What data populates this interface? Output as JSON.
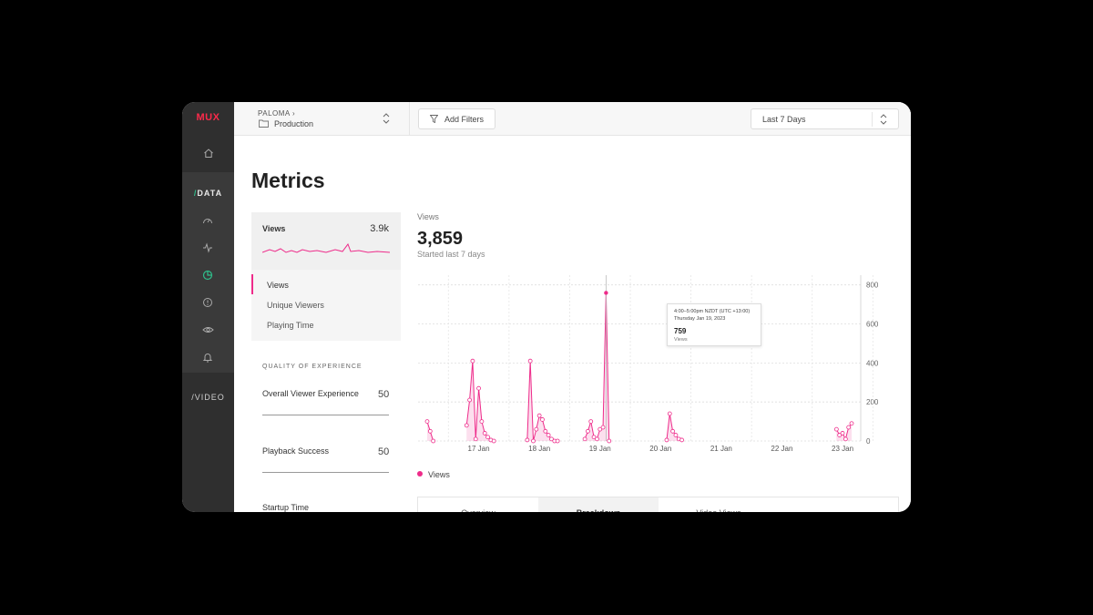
{
  "app": {
    "logo": "MUX"
  },
  "sidebar": {
    "data_slash": "/",
    "data_label": "DATA",
    "video_slash": "/",
    "video_label": "VIDEO"
  },
  "topbar": {
    "org": "PALOMA ›",
    "environment": "Production",
    "filters_label": "Add Filters",
    "range_label": "Last 7 Days"
  },
  "page": {
    "title": "Metrics"
  },
  "metric_card": {
    "label": "Views",
    "value": "3.9k"
  },
  "metric_list": [
    {
      "label": "Views",
      "active": true
    },
    {
      "label": "Unique Viewers",
      "active": false
    },
    {
      "label": "Playing Time",
      "active": false
    }
  ],
  "qoe": {
    "heading": "QUALITY OF EXPERIENCE",
    "scores": [
      {
        "label": "Overall Viewer Experience",
        "value": "50"
      },
      {
        "label": "Playback Success",
        "value": "50"
      },
      {
        "label": "Startup Time",
        "value": ""
      }
    ]
  },
  "summary": {
    "kicker": "Views",
    "value": "3,859",
    "subtitle": "Started last 7 days"
  },
  "tooltip": {
    "time": "4:00–5:00pm NZDT (UTC +13:00)",
    "date": "Thursday Jan 19, 2023",
    "value": "759",
    "unit": "Views"
  },
  "legend": {
    "label": "Views"
  },
  "tabs": [
    {
      "label": "Overview",
      "active": false
    },
    {
      "label": "Breakdown",
      "active": true
    },
    {
      "label": "Video Views",
      "active": false
    }
  ],
  "colors": {
    "accent": "#ee2b8a",
    "brand": "#fb2a4a",
    "data_green": "#2fbd8a"
  },
  "chart_data": {
    "type": "area",
    "ylim": [
      0,
      850
    ],
    "yticks": [
      0,
      200,
      400,
      600,
      800
    ],
    "xticks": [
      "17 Jan",
      "18 Jan",
      "19 Jan",
      "20 Jan",
      "21 Jan",
      "22 Jan",
      "23 Jan"
    ],
    "grid": true,
    "legend": "bottom-left",
    "series": [
      {
        "name": "Views",
        "x": [
          16.15,
          16.2,
          16.25,
          16.8,
          16.85,
          16.9,
          16.95,
          17.0,
          17.05,
          17.1,
          17.15,
          17.2,
          17.25,
          17.8,
          17.85,
          17.9,
          17.95,
          18.0,
          18.05,
          18.1,
          18.15,
          18.2,
          18.25,
          18.3,
          18.75,
          18.8,
          18.85,
          18.9,
          18.95,
          19.0,
          19.05,
          19.1,
          19.15,
          20.1,
          20.15,
          20.2,
          20.25,
          20.3,
          20.35,
          22.9,
          22.95,
          23.0,
          23.05,
          23.1,
          23.15
        ],
        "values": [
          100,
          50,
          0,
          80,
          210,
          410,
          10,
          270,
          100,
          40,
          20,
          5,
          0,
          5,
          410,
          0,
          60,
          130,
          110,
          50,
          30,
          10,
          0,
          0,
          10,
          50,
          100,
          20,
          10,
          60,
          70,
          759,
          0,
          5,
          140,
          50,
          30,
          10,
          5,
          60,
          30,
          40,
          10,
          70,
          90
        ]
      }
    ],
    "highlight": {
      "x": 19.1,
      "value": 759
    }
  }
}
